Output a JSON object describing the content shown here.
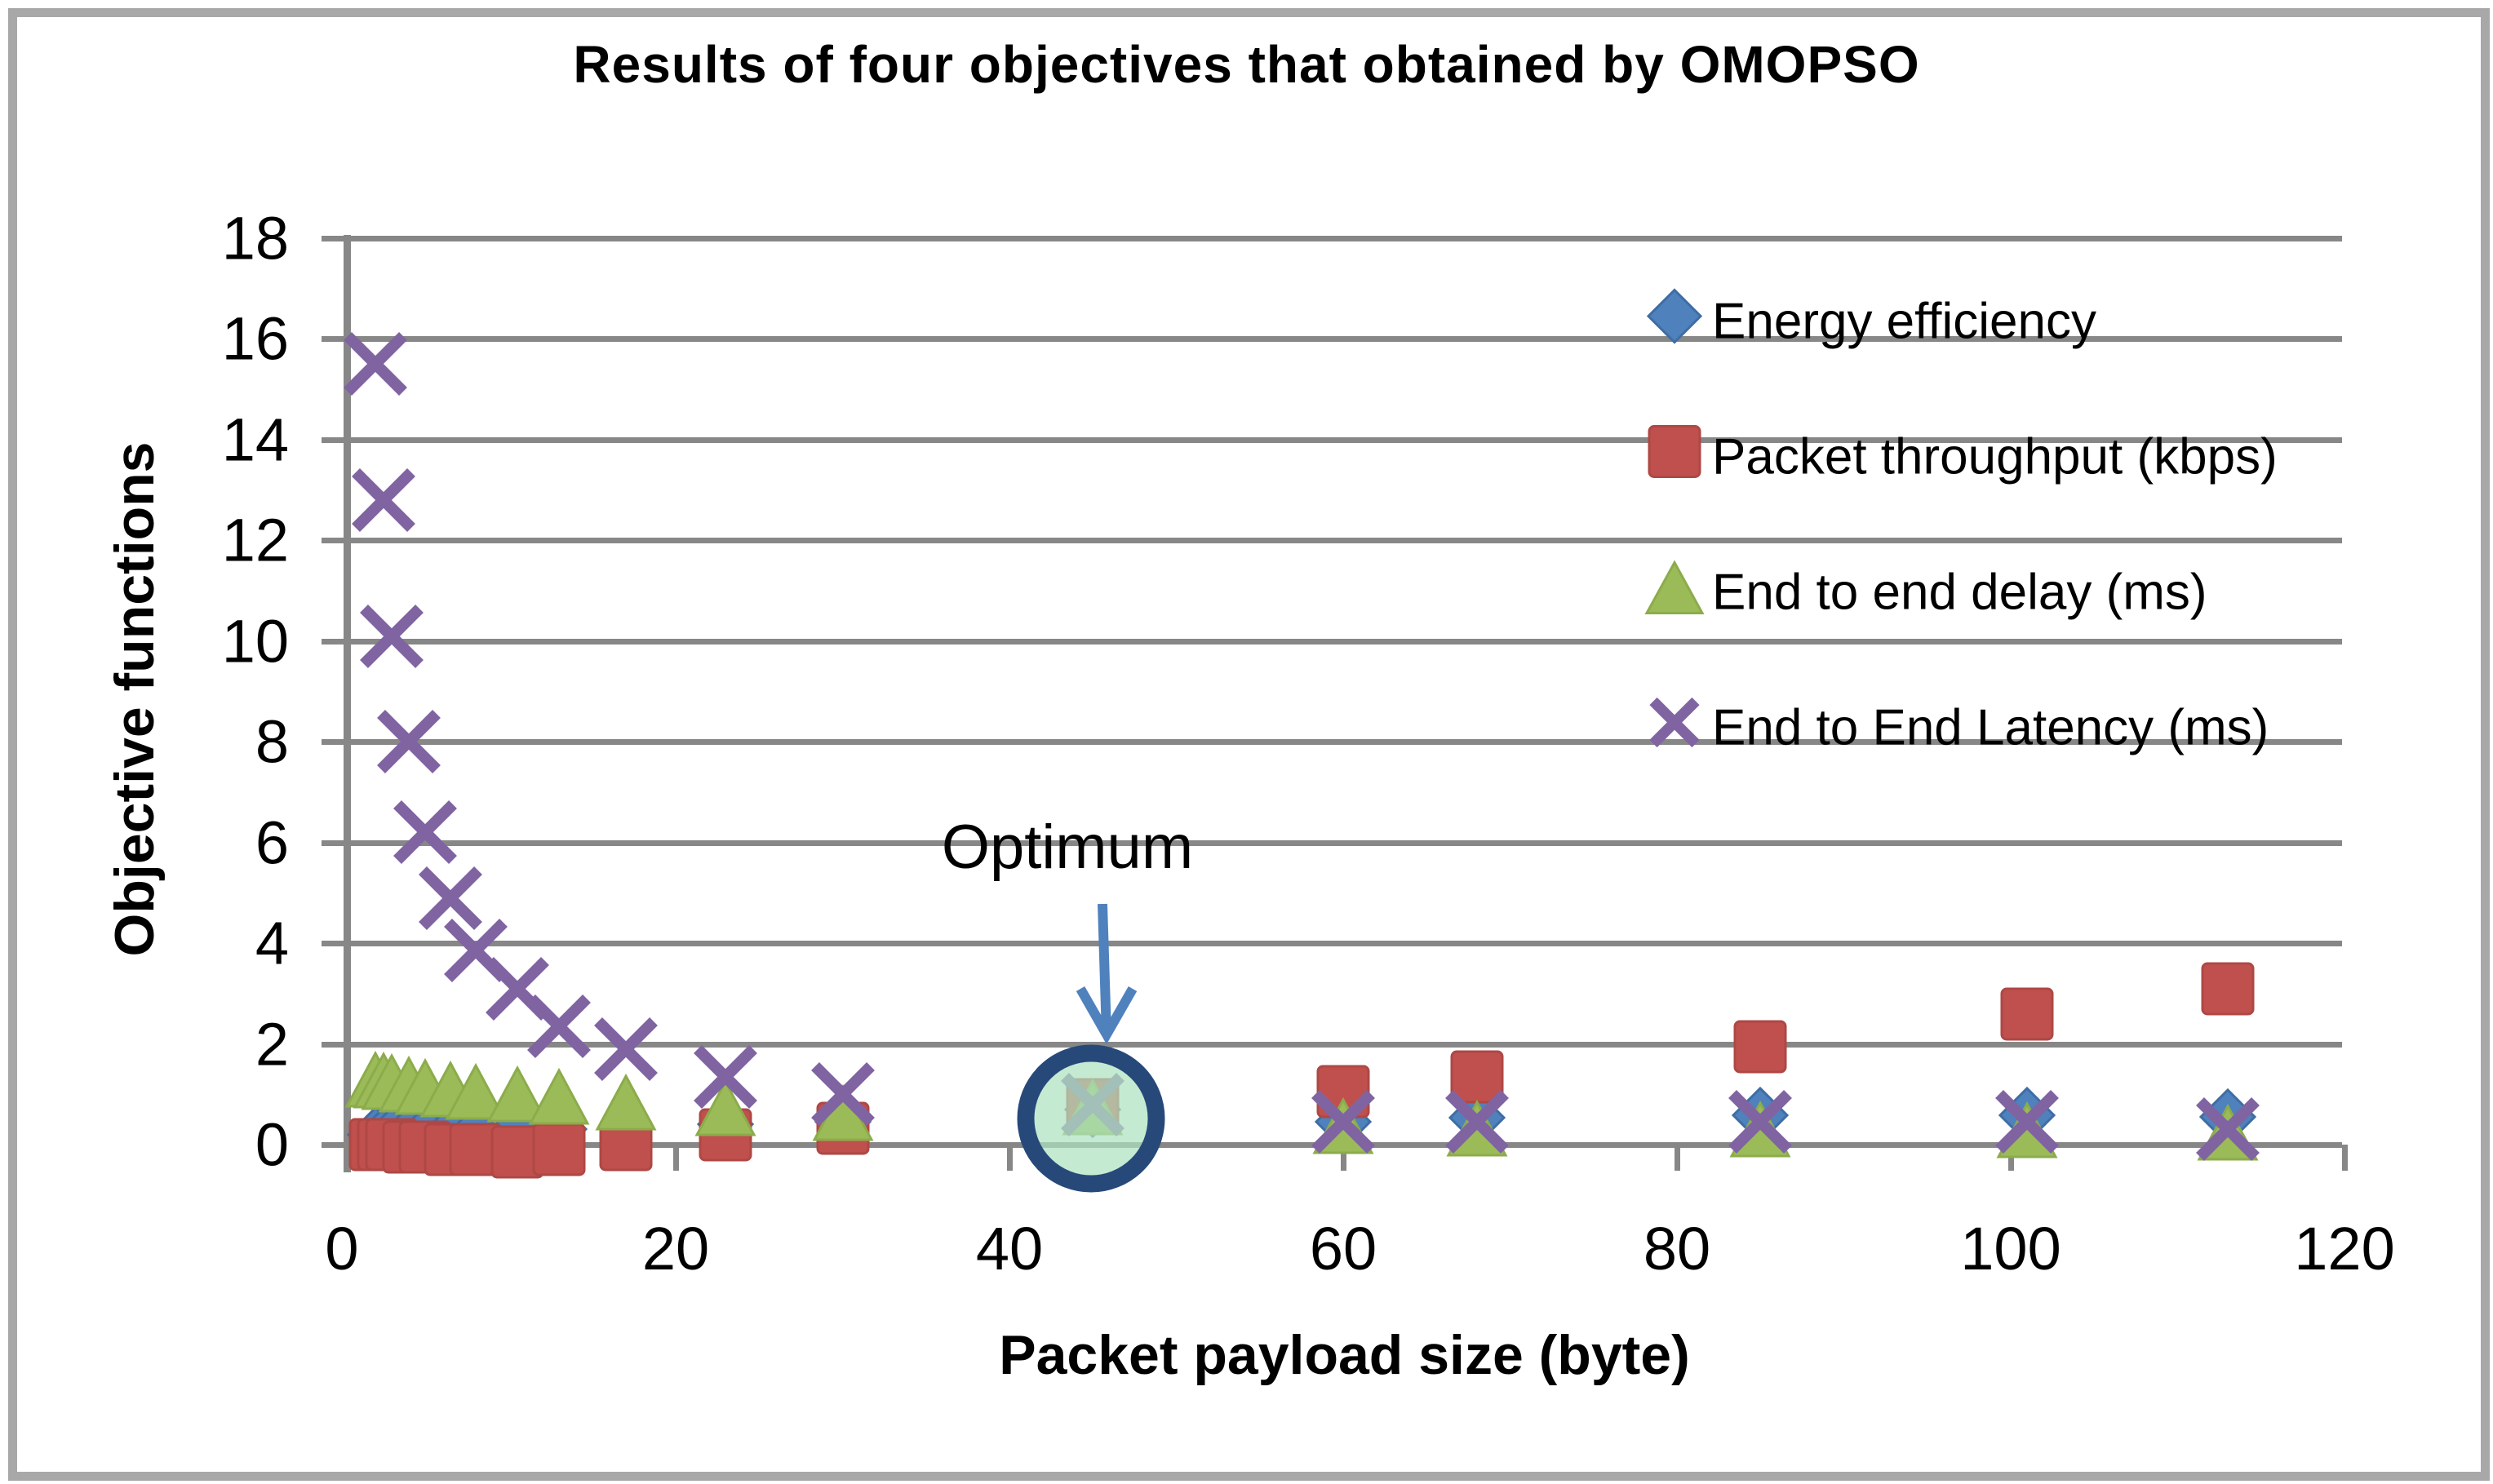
{
  "title": "Results of four objectives that obtained by OMOPSO",
  "annotation": {
    "label": "Optimum"
  },
  "legend": [
    {
      "label": "Energy efficiency",
      "marker": "diamond",
      "color": "#4F81BD"
    },
    {
      "label": "Packet throughput (kbps)",
      "marker": "square",
      "color": "#C0504D"
    },
    {
      "label": "End to end delay (ms)",
      "marker": "triangle",
      "color": "#9BBB59"
    },
    {
      "label": "End to End Latency (ms)",
      "marker": "x",
      "color": "#8064A2"
    }
  ],
  "colors": {
    "diamond": "#4F81BD",
    "diamond_edge": "#3E6DA5",
    "square": "#C0504D",
    "square_edge": "#AE4845",
    "triangle": "#9BBB59",
    "triangle_edge": "#8CAC4B",
    "x": "#8064A2",
    "gridline": "#878787",
    "circle_ring": "#27497A",
    "circle_fill": "rgba(174,226,192,0.72)",
    "arrow": "#4F81BD"
  },
  "chart_data": {
    "type": "scatter",
    "title": "Results of four objectives that obtained by OMOPSO",
    "xlabel": "Packet payload size (byte)",
    "ylabel": "Objective functions",
    "xlim": [
      0,
      120
    ],
    "ylim": [
      0,
      18
    ],
    "xticks": [
      0,
      20,
      40,
      60,
      80,
      100,
      120
    ],
    "yticks": [
      0,
      2,
      4,
      6,
      8,
      10,
      12,
      14,
      16,
      18
    ],
    "grid": "horizontal",
    "legend_position": "upper right inside",
    "x": [
      2,
      2.5,
      3,
      4,
      5,
      6.5,
      8,
      10.5,
      13,
      17,
      23,
      30,
      45,
      60,
      68,
      85,
      101,
      113
    ],
    "series": [
      {
        "name": "Energy efficiency",
        "marker": "diamond",
        "values": [
          0.2,
          0.2,
          0.2,
          0.22,
          0.22,
          0.25,
          0.25,
          0.3,
          0.3,
          0.35,
          0.4,
          0.45,
          0.7,
          0.45,
          0.53,
          0.58,
          0.58,
          0.55
        ]
      },
      {
        "name": "Packet throughput (kbps)",
        "marker": "square",
        "values": [
          0.0,
          0.0,
          0.0,
          -0.05,
          -0.05,
          -0.1,
          -0.1,
          -0.15,
          -0.1,
          0.0,
          0.2,
          0.33,
          0.8,
          1.05,
          1.35,
          1.95,
          2.6,
          3.1
        ]
      },
      {
        "name": "End to end delay (ms)",
        "marker": "triangle",
        "values": [
          1.3,
          1.28,
          1.25,
          1.2,
          1.15,
          1.1,
          1.05,
          1.0,
          0.95,
          0.85,
          0.73,
          0.63,
          0.75,
          0.37,
          0.32,
          0.3,
          0.29,
          0.25
        ]
      },
      {
        "name": "End to End Latency (ms)",
        "marker": "x",
        "values": [
          15.5,
          12.8,
          10.1,
          8.0,
          6.2,
          4.9,
          3.85,
          3.1,
          2.35,
          1.9,
          1.35,
          1.0,
          0.8,
          0.45,
          0.45,
          0.45,
          0.45,
          0.3
        ]
      }
    ],
    "annotation": {
      "label": "Optimum",
      "points_to_x": 45,
      "points_to_y": 0.6
    }
  }
}
